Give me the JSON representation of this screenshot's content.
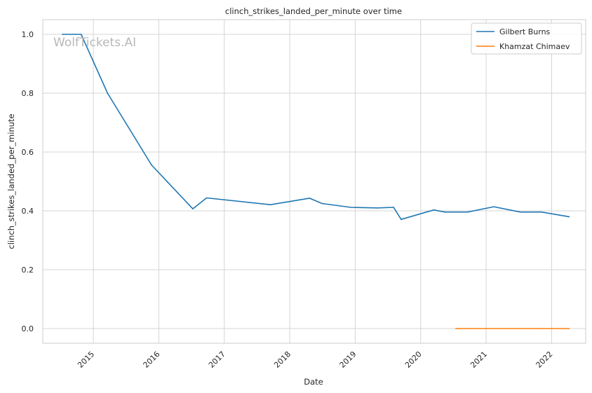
{
  "chart_data": {
    "type": "line",
    "title": "clinch_strikes_landed_per_minute over time",
    "xlabel": "Date",
    "ylabel": "clinch_strikes_landed_per_minute",
    "watermark": "WolfTickets.AI",
    "x_ticks": [
      "2015",
      "2016",
      "2017",
      "2018",
      "2019",
      "2020",
      "2021",
      "2022"
    ],
    "y_ticks": [
      "0.0",
      "0.2",
      "0.4",
      "0.6",
      "0.8",
      "1.0"
    ],
    "xlim": [
      "2014-03-25",
      "2022-07-10"
    ],
    "ylim": [
      -0.05,
      1.05
    ],
    "grid": true,
    "legend_position": "top-right",
    "series": [
      {
        "name": "Gilbert Burns",
        "color": "#1f77b4",
        "points": [
          [
            "2014-07-12",
            1.0
          ],
          [
            "2014-10-25",
            1.0
          ],
          [
            "2015-03-21",
            0.8
          ],
          [
            "2015-11-21",
            0.556
          ],
          [
            "2016-07-09",
            0.407
          ],
          [
            "2016-09-24",
            0.444
          ],
          [
            "2017-09-16",
            0.421
          ],
          [
            "2018-04-21",
            0.443
          ],
          [
            "2018-06-30",
            0.425
          ],
          [
            "2018-12-08",
            0.412
          ],
          [
            "2019-05-04",
            0.41
          ],
          [
            "2019-08-03",
            0.412
          ],
          [
            "2019-09-14",
            0.371
          ],
          [
            "2020-03-14",
            0.403
          ],
          [
            "2020-05-16",
            0.396
          ],
          [
            "2020-09-19",
            0.396
          ],
          [
            "2021-02-13",
            0.414
          ],
          [
            "2021-07-10",
            0.396
          ],
          [
            "2021-11-06",
            0.396
          ],
          [
            "2022-04-09",
            0.38
          ]
        ]
      },
      {
        "name": "Khamzat Chimaev",
        "color": "#ff7f0e",
        "points": [
          [
            "2020-07-15",
            0.0
          ],
          [
            "2020-07-25",
            0.0
          ],
          [
            "2020-09-19",
            0.0
          ],
          [
            "2021-10-30",
            0.0
          ],
          [
            "2022-04-09",
            0.0
          ]
        ]
      }
    ]
  }
}
